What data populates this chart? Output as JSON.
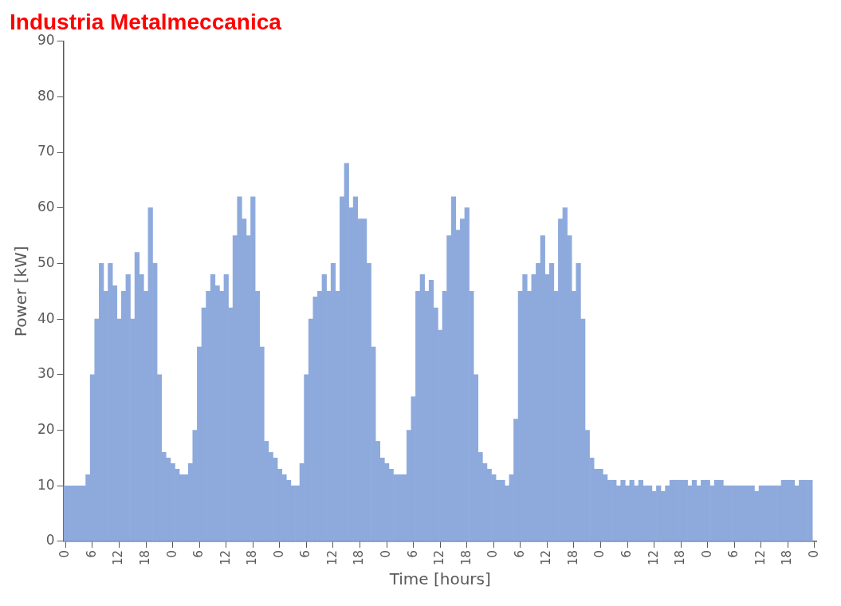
{
  "chart_data": {
    "type": "bar",
    "title": "Industria Metalmeccanica",
    "xlabel": "Time [hours]",
    "ylabel": "Power [kW]",
    "categories": [
      "0",
      null,
      null,
      null,
      null,
      null,
      "6",
      null,
      null,
      null,
      null,
      null,
      "12",
      null,
      null,
      null,
      null,
      null,
      "18",
      null,
      null,
      null,
      null,
      null,
      "0",
      null,
      null,
      null,
      null,
      null,
      "6",
      null,
      null,
      null,
      null,
      null,
      "12",
      null,
      null,
      null,
      null,
      null,
      "18",
      null,
      null,
      null,
      null,
      null,
      "0",
      null,
      null,
      null,
      null,
      null,
      "6",
      null,
      null,
      null,
      null,
      null,
      "12",
      null,
      null,
      null,
      null,
      null,
      "18",
      null,
      null,
      null,
      null,
      null,
      "0",
      null,
      null,
      null,
      null,
      null,
      "6",
      null,
      null,
      null,
      null,
      null,
      "12",
      null,
      null,
      null,
      null,
      null,
      "18",
      null,
      null,
      null,
      null,
      null,
      "0",
      null,
      null,
      null,
      null,
      null,
      "6",
      null,
      null,
      null,
      null,
      null,
      "12",
      null,
      null,
      null,
      null,
      null,
      "18",
      null,
      null,
      null,
      null,
      null,
      "0",
      null,
      null,
      null,
      null,
      null,
      "6",
      null,
      null,
      null,
      null,
      null,
      "12",
      null,
      null,
      null,
      null,
      null,
      "18",
      null,
      null,
      null,
      null,
      null,
      "0",
      null,
      null,
      null,
      null,
      null,
      "6",
      null,
      null,
      null,
      null,
      null,
      "12",
      null,
      null,
      null,
      null,
      null,
      "18",
      null,
      null,
      null,
      null,
      null,
      "0"
    ],
    "values": [
      10,
      10,
      10,
      10,
      10,
      12,
      30,
      40,
      50,
      45,
      50,
      46,
      40,
      45,
      48,
      40,
      52,
      48,
      45,
      60,
      50,
      30,
      16,
      15,
      14,
      13,
      12,
      12,
      14,
      20,
      35,
      42,
      45,
      48,
      46,
      45,
      48,
      42,
      55,
      62,
      58,
      55,
      62,
      45,
      35,
      18,
      16,
      15,
      13,
      12,
      11,
      10,
      10,
      14,
      30,
      40,
      44,
      45,
      48,
      45,
      50,
      45,
      62,
      68,
      60,
      62,
      58,
      58,
      50,
      35,
      18,
      15,
      14,
      13,
      12,
      12,
      12,
      20,
      26,
      45,
      48,
      45,
      47,
      42,
      38,
      45,
      55,
      62,
      56,
      58,
      60,
      45,
      30,
      16,
      14,
      13,
      12,
      11,
      11,
      10,
      12,
      22,
      45,
      48,
      45,
      48,
      50,
      55,
      48,
      50,
      45,
      58,
      60,
      55,
      45,
      50,
      40,
      20,
      15,
      13,
      13,
      12,
      11,
      11,
      10,
      11,
      10,
      11,
      10,
      11,
      10,
      10,
      9,
      10,
      9,
      10,
      11,
      11,
      11,
      11,
      10,
      11,
      10,
      11,
      11,
      10,
      11,
      11,
      10,
      10,
      10,
      10,
      10,
      10,
      10,
      9,
      10,
      10,
      10,
      10,
      10,
      11,
      11,
      11,
      10,
      11,
      11,
      11,
      null
    ],
    "color": "#8eaadc",
    "ylim": [
      0,
      90
    ],
    "yticks": [
      0,
      10,
      20,
      30,
      40,
      50,
      60,
      70,
      80,
      90
    ],
    "grid": false,
    "legend": false
  }
}
